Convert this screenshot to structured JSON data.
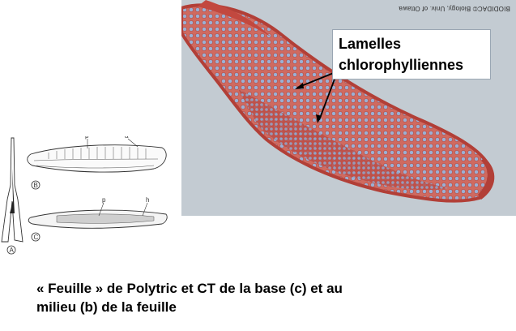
{
  "micrograph": {
    "credit": "BIODIDAC© Biology, Univ. of Ottawa",
    "label_line1": "Lamelles",
    "label_line2": "chlorophylliennes"
  },
  "drawing": {
    "label_p_b": "p",
    "label_a": "a",
    "label_p_c": "p",
    "label_h": "h",
    "panel_a": "A",
    "panel_b": "B",
    "panel_c": "C"
  },
  "caption": {
    "line1": "« Feuille » de Polytric et CT de la base (c) et au",
    "line2": "milieu (b) de la feuille"
  },
  "colors": {
    "tissue_red": "#c8574e",
    "cell_blue": "#8fa7cf",
    "background_gray": "#c3cbd2",
    "arrow": "#000000"
  }
}
